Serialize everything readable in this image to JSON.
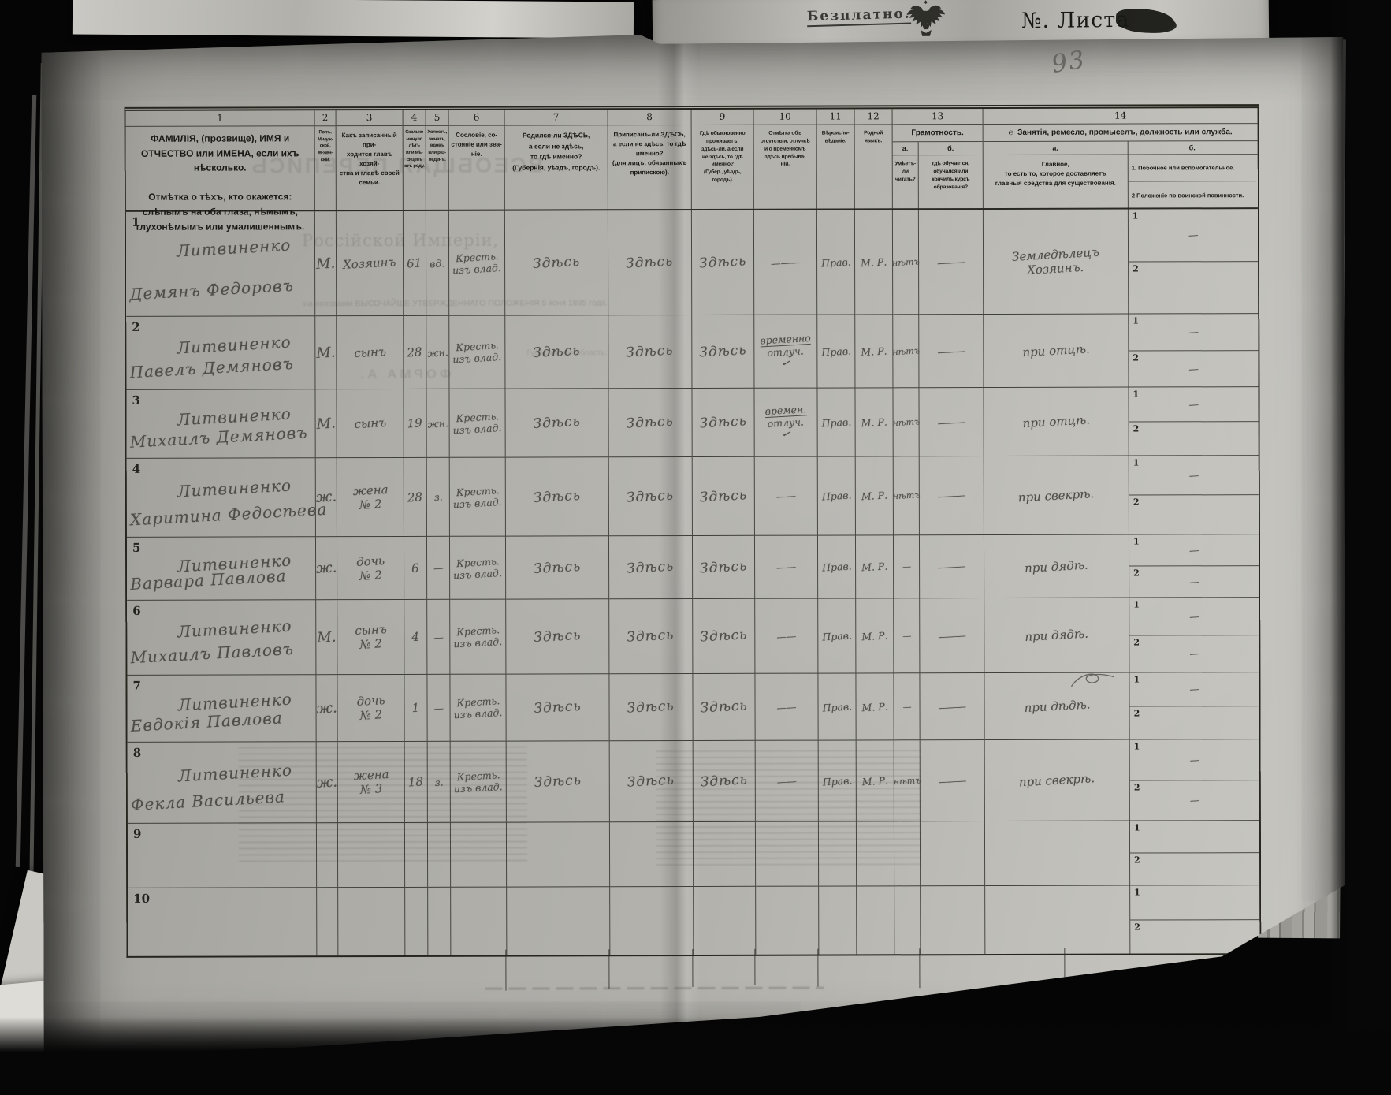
{
  "photo": {
    "sheet_number": "93",
    "free_label": "Безплатно.",
    "list_label": "№. Листа",
    "eagle_icon": "imperial-double-eagle"
  },
  "bleed_through": {
    "title_mirrored": "ВСЕОБЩАЯ ПЕРЕПИСЬ",
    "line_imperiya": "Россійской Имперіи,",
    "line_osnovanie": "на основаніи ВЫСОЧАЙШЕ УТВЕРЖДЕННАГО ПОЛОЖЕНІЯ 5 іюня 1895 года.",
    "line_guberniya": "Губернія или область:",
    "forma_mirrored": "ФОРМА А."
  },
  "table": {
    "sub_labels": [
      "1",
      "2"
    ],
    "header": {
      "numbers": [
        "1",
        "2",
        "3",
        "4",
        "5",
        "6",
        "7",
        "8",
        "9",
        "10",
        "11",
        "12",
        "13",
        "14"
      ],
      "c1a": "ФАМИЛІЯ, (прозвище), ИМЯ и ОТЧЕСТВО или ИМЕНА, если ихъ нѣсколько.",
      "c1b": "Отмѣтка о тѣхъ, кто окажется: слѣпымъ на оба глаза, нѣмымъ, глухонѣмымъ или умалишеннымъ.",
      "c2": "Полъ.\nМ-муж-\nской.\nЖ-жен-\nскій.",
      "c3": "Какъ записанный при-\nходится главѣ хозяй-\nства и главѣ своей\nсемьи.",
      "c4": "Сколько\nминуло\nлѣтъ\nили мѣ-\nсяцевъ\nотъ роду.",
      "c5": "Холостъ,\nженатъ,\nвдовъ\nили раз-\nведенъ.",
      "c6": "Сословіе, со-\nстояніе или зва-\nніе.",
      "c7": "Родился-ли ЗДѢСЬ,\nа если не здѣсь,\nто гдѣ именно?\n(Губернія, уѣздъ, городъ).",
      "c8": "Приписанъ-ли ЗДѢСЬ,\nа если не здѣсь, то гдѣ\nименно?\n(для лицъ, обязанныхъ\nприпискою).",
      "c9": "Гдѣ обыкновенно\nпроживаетъ:\nздѣсь-ли, а если\nне здѣсь, то гдѣ\nименно?\n(Губер., уѣздъ, городъ).",
      "c10": "Отмѣтка объ\nотсутствіи, отлучкѣ\nи о временномъ\nздѣсь пребыва-\nніи.",
      "c11": "Вѣроиспо-\nвѣданіе.",
      "c12": "Родной\nязыкъ.",
      "c13": {
        "title": "Грамотность.",
        "a": "а.",
        "b": "б.",
        "a_desc": "Умѣетъ-\nли\nчитать?",
        "b_desc": "гдѣ обучается,\nобучался или\nкончилъ курсъ\nобразованія?"
      },
      "c14": {
        "mark": "℮",
        "title": "Занятія, ремесло, промыселъ, должность или служба.",
        "a": "а.",
        "b": "б.",
        "a_desc": "Главное,\nто есть то, которое доставляетъ\nглавныя средства для существованія.",
        "b1": "1.  Побочное или вспомогательное.",
        "b2": "2   Положеніе по воинской повинности."
      }
    }
  },
  "rows": [
    {
      "num": "1",
      "surname": "Литвиненко",
      "given": "Демянъ Федоровъ",
      "sex": "М.",
      "rel1": "Хозяинъ",
      "rel2": "",
      "age": "61",
      "marital": "вд.",
      "estate1": "Кресть.",
      "estate2": "изъ влад.",
      "born": "Здѣсь",
      "registered": "Здѣсь",
      "lives": "Здѣсь",
      "abs1": "———",
      "abs2": "",
      "abs_mark": "",
      "religion": "Прав.",
      "language": "М. Р.",
      "reads": "нѣтъ",
      "education": "———",
      "occ1": "Земледѣлецъ",
      "occ2": "Хозяинъ.",
      "sub1": "—",
      "sub2": ""
    },
    {
      "num": "2",
      "surname": "Литвиненко",
      "given": "Павелъ Демяновъ",
      "sex": "М.",
      "rel1": "сынъ",
      "rel2": "",
      "age": "28",
      "marital": "жн.",
      "estate1": "Кресть.",
      "estate2": "изъ влад.",
      "born": "Здѣсь",
      "registered": "Здѣсь",
      "lives": "Здѣсь",
      "abs1": "временно",
      "abs2": "отлуч.",
      "abs_mark": "✓",
      "religion": "Прав.",
      "language": "М. Р.",
      "reads": "нѣтъ",
      "education": "———",
      "occ1": "при отцѣ.",
      "occ2": "",
      "sub1": "—",
      "sub2": "—"
    },
    {
      "num": "3",
      "surname": "Литвиненко",
      "given": "Михаилъ Демяновъ",
      "sex": "М.",
      "rel1": "сынъ",
      "rel2": "",
      "age": "19",
      "marital": "жн.",
      "estate1": "Кресть.",
      "estate2": "изъ влад.",
      "born": "Здѣсь",
      "registered": "Здѣсь",
      "lives": "Здѣсь",
      "abs1": "времен.",
      "abs2": "отлуч.",
      "abs_mark": "✓",
      "religion": "Прав.",
      "language": "М. Р.",
      "reads": "нѣтъ",
      "education": "———",
      "occ1": "при отцѣ.",
      "occ2": "",
      "sub1": "—",
      "sub2": ""
    },
    {
      "num": "4",
      "surname": "Литвиненко",
      "given": "Харитина Федосѣева",
      "sex": "ж.",
      "rel1": "жена",
      "rel2": "№ 2",
      "age": "28",
      "marital": "з.",
      "estate1": "Кресть.",
      "estate2": "изъ влад.",
      "born": "Здѣсь",
      "registered": "Здѣсь",
      "lives": "Здѣсь",
      "abs1": "——",
      "abs2": "",
      "abs_mark": "",
      "religion": "Прав.",
      "language": "М. Р.",
      "reads": "нѣтъ",
      "education": "———",
      "occ1": "при свекрѣ.",
      "occ2": "",
      "sub1": "—",
      "sub2": ""
    },
    {
      "num": "5",
      "surname": "Литвиненко",
      "given": "Варвара Павлова",
      "sex": "ж.",
      "rel1": "дочь",
      "rel2": "№ 2",
      "age": "6",
      "marital": "—",
      "estate1": "Кресть.",
      "estate2": "изъ влад.",
      "born": "Здѣсь",
      "registered": "Здѣсь",
      "lives": "Здѣсь",
      "abs1": "——",
      "abs2": "",
      "abs_mark": "",
      "religion": "Прав.",
      "language": "М. Р.",
      "reads": "—",
      "education": "———",
      "occ1": "при дядѣ.",
      "occ2": "",
      "sub1": "—",
      "sub2": "—"
    },
    {
      "num": "6",
      "surname": "Литвиненко",
      "given": "Михаилъ Павловъ",
      "sex": "М.",
      "rel1": "сынъ",
      "rel2": "№ 2",
      "age": "4",
      "marital": "—",
      "estate1": "Кресть.",
      "estate2": "изъ влад.",
      "born": "Здѣсь",
      "registered": "Здѣсь",
      "lives": "Здѣсь",
      "abs1": "——",
      "abs2": "",
      "abs_mark": "",
      "religion": "Прав.",
      "language": "М. Р.",
      "reads": "—",
      "education": "———",
      "occ1": "при дядѣ.",
      "occ2": "",
      "sub1": "—",
      "sub2": "—"
    },
    {
      "num": "7",
      "surname": "Литвиненко",
      "given": "Евдокія Павлова",
      "sex": "ж.",
      "rel1": "дочь",
      "rel2": "№ 2",
      "age": "1",
      "marital": "—",
      "estate1": "Кресть.",
      "estate2": "изъ влад.",
      "born": "Здѣсь",
      "registered": "Здѣсь",
      "lives": "Здѣсь",
      "abs1": "——",
      "abs2": "",
      "abs_mark": "",
      "religion": "Прав.",
      "language": "М. Р.",
      "reads": "—",
      "education": "———",
      "occ1": "при дѣдѣ.",
      "occ2": "",
      "flourish": true,
      "sub1": "—",
      "sub2": ""
    },
    {
      "num": "8",
      "surname": "Литвиненко",
      "given": "Фекла Васильева",
      "sex": "ж.",
      "rel1": "жена",
      "rel2": "№ 3",
      "age": "18",
      "marital": "з.",
      "estate1": "Кресть.",
      "estate2": "изъ влад.",
      "born": "Здѣсь",
      "registered": "Здѣсь",
      "lives": "Здѣсь",
      "abs1": "——",
      "abs2": "",
      "abs_mark": "",
      "religion": "Прав.",
      "language": "М. Р.",
      "reads": "нѣтъ",
      "education": "———",
      "occ1": "при свекрѣ.",
      "occ2": "",
      "sub1": "—",
      "sub2": "—"
    },
    {
      "num": "9",
      "surname": "",
      "given": "",
      "sex": "",
      "rel1": "",
      "rel2": "",
      "age": "",
      "marital": "",
      "estate1": "",
      "estate2": "",
      "born": "",
      "registered": "",
      "lives": "",
      "abs1": "",
      "abs2": "",
      "abs_mark": "",
      "religion": "",
      "language": "",
      "reads": "",
      "education": "",
      "occ1": "",
      "occ2": "",
      "sub1": "",
      "sub2": ""
    },
    {
      "num": "10",
      "surname": "",
      "given": "",
      "sex": "",
      "rel1": "",
      "rel2": "",
      "age": "",
      "marital": "",
      "estate1": "",
      "estate2": "",
      "born": "",
      "registered": "",
      "lives": "",
      "abs1": "",
      "abs2": "",
      "abs_mark": "",
      "religion": "",
      "language": "",
      "reads": "",
      "education": "",
      "occ1": "",
      "occ2": "",
      "sub1": "",
      "sub2": ""
    }
  ]
}
